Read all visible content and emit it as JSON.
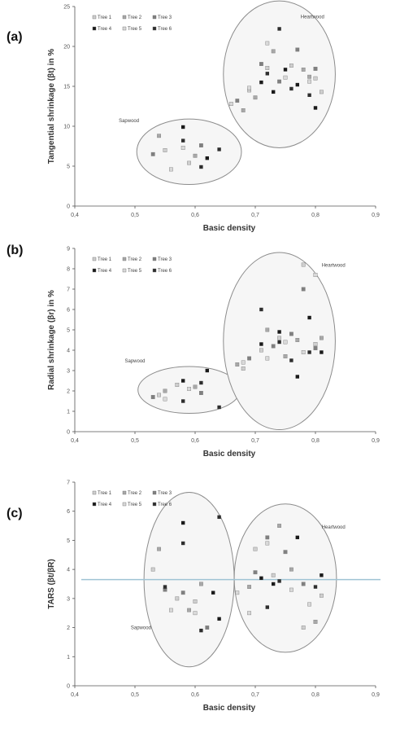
{
  "colors": {
    "tree_1": "#cfcfcf",
    "tree_2": "#a8a8a8",
    "tree_3": "#808080",
    "tree_4": "#1a1a1a",
    "tree_5": "#d9d9d9",
    "tree_6": "#2e2e2e",
    "ellipse_stroke": "#8c8c8c",
    "ellipse_fill": "#f6f6f6",
    "reference_line": "#9fc3d4"
  },
  "chart_data": [
    {
      "type": "scatter",
      "panel_label": "(a)",
      "xlabel": "Basic density",
      "ylabel": "Tangential shrinkage (βt) in %",
      "xlim": [
        0.4,
        0.9
      ],
      "ylim": [
        0,
        25
      ],
      "x_ticks": [
        "0,4",
        "0,5",
        "0,6",
        "0,7",
        "0,8",
        "0,9"
      ],
      "y_ticks": [
        "0",
        "5",
        "10",
        "15",
        "20",
        "25"
      ],
      "legend": [
        "Tree 1",
        "Tree 2",
        "Tree 3",
        "Tree 4",
        "Tree 5",
        "Tree 6"
      ],
      "legend_placement": "top-left",
      "annotations": [
        {
          "text": "Sapwood",
          "x": 0.49,
          "y": 10.5
        },
        {
          "text": "Heartwood",
          "x": 0.795,
          "y": 23.5
        }
      ],
      "ellipses": [
        {
          "name": "Sapwood",
          "cx": 0.59,
          "cy": 6.8,
          "rx": 0.087,
          "ry": 4.1
        },
        {
          "name": "Heartwood",
          "cx": 0.74,
          "cy": 16.5,
          "rx": 0.093,
          "ry": 9.2
        }
      ],
      "series": [
        {
          "name": "Tree 1",
          "x": [
            0.55,
            0.59,
            0.69,
            0.72,
            0.76,
            0.8,
            0.81
          ],
          "y": [
            7.0,
            5.4,
            14.5,
            17.3,
            17.6,
            16.0,
            14.3
          ]
        },
        {
          "name": "Tree 2",
          "x": [
            0.54,
            0.6,
            0.68,
            0.7,
            0.73,
            0.78,
            0.79
          ],
          "y": [
            8.8,
            6.3,
            12.0,
            13.6,
            19.4,
            17.1,
            16.2
          ]
        },
        {
          "name": "Tree 3",
          "x": [
            0.53,
            0.61,
            0.67,
            0.71,
            0.74,
            0.77,
            0.8
          ],
          "y": [
            6.5,
            7.6,
            13.2,
            17.8,
            15.6,
            19.6,
            17.2
          ]
        },
        {
          "name": "Tree 4",
          "x": [
            0.58,
            0.62,
            0.71,
            0.73,
            0.75,
            0.77,
            0.8
          ],
          "y": [
            9.9,
            6.0,
            15.5,
            14.3,
            17.1,
            15.2,
            12.3
          ]
        },
        {
          "name": "Tree 5",
          "x": [
            0.56,
            0.58,
            0.66,
            0.69,
            0.72,
            0.75,
            0.79
          ],
          "y": [
            4.6,
            7.3,
            12.8,
            14.8,
            20.4,
            16.1,
            15.6
          ]
        },
        {
          "name": "Tree 6",
          "x": [
            0.58,
            0.61,
            0.64,
            0.72,
            0.74,
            0.76,
            0.79
          ],
          "y": [
            8.2,
            4.9,
            7.1,
            16.6,
            22.2,
            14.7,
            13.9
          ]
        }
      ]
    },
    {
      "type": "scatter",
      "panel_label": "(b)",
      "xlabel": "Basic density",
      "ylabel": "Radial shrinkage (βr) in %",
      "xlim": [
        0.4,
        0.9
      ],
      "ylim": [
        0,
        9
      ],
      "x_ticks": [
        "0,4",
        "0,5",
        "0,6",
        "0,7",
        "0,8",
        "0,9"
      ],
      "y_ticks": [
        "0",
        "1",
        "2",
        "3",
        "4",
        "5",
        "6",
        "7",
        "8",
        "9"
      ],
      "legend": [
        "Tree 1",
        "Tree 2",
        "Tree 3",
        "Tree 4",
        "Tree 5",
        "Tree 6"
      ],
      "legend_placement": "top-left",
      "annotations": [
        {
          "text": "Sapwood",
          "x": 0.5,
          "y": 3.4
        },
        {
          "text": "Heartwood",
          "x": 0.83,
          "y": 8.1
        }
      ],
      "ellipses": [
        {
          "name": "Sapwood",
          "cx": 0.59,
          "cy": 2.05,
          "rx": 0.085,
          "ry": 1.15
        },
        {
          "name": "Heartwood",
          "cx": 0.74,
          "cy": 4.45,
          "rx": 0.093,
          "ry": 4.35
        }
      ],
      "series": [
        {
          "name": "Tree 1",
          "x": [
            0.54,
            0.57,
            0.68,
            0.71,
            0.74,
            0.78,
            0.8
          ],
          "y": [
            1.8,
            2.3,
            3.1,
            4.0,
            4.6,
            8.2,
            4.3
          ]
        },
        {
          "name": "Tree 2",
          "x": [
            0.55,
            0.6,
            0.67,
            0.72,
            0.75,
            0.77,
            0.81
          ],
          "y": [
            2.0,
            2.2,
            3.3,
            5.0,
            3.7,
            4.5,
            4.6
          ]
        },
        {
          "name": "Tree 3",
          "x": [
            0.53,
            0.61,
            0.69,
            0.73,
            0.76,
            0.78,
            0.8
          ],
          "y": [
            1.7,
            1.9,
            3.6,
            4.2,
            4.8,
            7.0,
            4.1
          ]
        },
        {
          "name": "Tree 4",
          "x": [
            0.58,
            0.62,
            0.71,
            0.74,
            0.77,
            0.79,
            0.81
          ],
          "y": [
            2.5,
            3.0,
            4.3,
            4.9,
            2.7,
            5.6,
            3.9
          ]
        },
        {
          "name": "Tree 5",
          "x": [
            0.55,
            0.59,
            0.68,
            0.72,
            0.75,
            0.78,
            0.8
          ],
          "y": [
            1.6,
            2.1,
            3.4,
            3.6,
            4.4,
            3.9,
            7.7
          ]
        },
        {
          "name": "Tree 6",
          "x": [
            0.58,
            0.61,
            0.64,
            0.71,
            0.74,
            0.76,
            0.79
          ],
          "y": [
            1.5,
            2.4,
            1.2,
            6.0,
            4.4,
            3.5,
            3.9
          ]
        }
      ]
    },
    {
      "type": "scatter",
      "panel_label": "(c)",
      "xlabel": "Basic density",
      "ylabel": "TARS (βt/βR)",
      "xlim": [
        0.4,
        0.9
      ],
      "ylim": [
        0,
        7
      ],
      "x_ticks": [
        "0,4",
        "0,5",
        "0,6",
        "0,7",
        "0,8",
        "0,9"
      ],
      "y_ticks": [
        "0",
        "1",
        "2",
        "3",
        "4",
        "5",
        "6",
        "7"
      ],
      "legend": [
        "Tree 1",
        "Tree 2",
        "Tree 3",
        "Tree 4",
        "Tree 5",
        "Tree 6"
      ],
      "legend_placement": "top-left",
      "reference_line_y": 3.65,
      "annotations": [
        {
          "text": "Sapwood",
          "x": 0.51,
          "y": 1.95
        },
        {
          "text": "Heartwood",
          "x": 0.83,
          "y": 5.4
        }
      ],
      "ellipses": [
        {
          "name": "Sapwood",
          "cx": 0.59,
          "cy": 3.65,
          "rx": 0.075,
          "ry": 3.0
        },
        {
          "name": "Heartwood",
          "cx": 0.75,
          "cy": 3.7,
          "rx": 0.085,
          "ry": 2.55
        }
      ],
      "series": [
        {
          "name": "Tree 1",
          "x": [
            0.53,
            0.57,
            0.6,
            0.7,
            0.73,
            0.78,
            0.81
          ],
          "y": [
            4.0,
            3.0,
            2.9,
            4.7,
            3.8,
            2.0,
            3.1
          ]
        },
        {
          "name": "Tree 2",
          "x": [
            0.54,
            0.59,
            0.61,
            0.69,
            0.74,
            0.76,
            0.8
          ],
          "y": [
            4.7,
            2.6,
            3.5,
            3.4,
            5.5,
            4.0,
            2.2
          ]
        },
        {
          "name": "Tree 3",
          "x": [
            0.55,
            0.58,
            0.62,
            0.7,
            0.72,
            0.75,
            0.78
          ],
          "y": [
            3.3,
            3.2,
            2.0,
            3.9,
            5.1,
            4.6,
            3.5
          ]
        },
        {
          "name": "Tree 4",
          "x": [
            0.58,
            0.63,
            0.64,
            0.71,
            0.73,
            0.77,
            0.81
          ],
          "y": [
            5.6,
            3.2,
            2.3,
            3.7,
            3.5,
            5.1,
            3.8
          ]
        },
        {
          "name": "Tree 5",
          "x": [
            0.56,
            0.6,
            0.67,
            0.69,
            0.72,
            0.76,
            0.79
          ],
          "y": [
            2.6,
            2.5,
            3.2,
            2.5,
            4.9,
            3.3,
            2.8
          ]
        },
        {
          "name": "Tree 6",
          "x": [
            0.55,
            0.58,
            0.61,
            0.64,
            0.72,
            0.74,
            0.8
          ],
          "y": [
            3.4,
            4.9,
            1.9,
            5.8,
            2.7,
            3.6,
            3.4
          ]
        }
      ]
    }
  ]
}
